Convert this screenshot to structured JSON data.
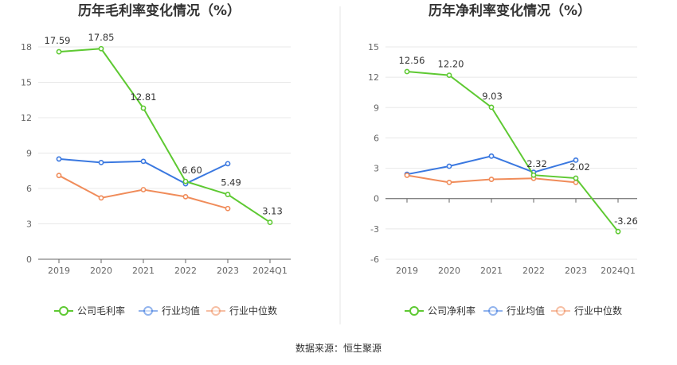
{
  "source": "数据来源：恒生聚源",
  "chart_data": [
    {
      "type": "line",
      "title": "历年毛利率变化情况（%）",
      "categories": [
        "2019",
        "2020",
        "2021",
        "2022",
        "2023",
        "2024Q1"
      ],
      "ylim": [
        0,
        18
      ],
      "yticks": [
        0,
        3,
        6,
        9,
        12,
        15,
        18
      ],
      "grid": true,
      "legend_position": "bottom",
      "series": [
        {
          "name": "公司毛利率",
          "color": "#5ec932",
          "values": [
            17.59,
            17.85,
            12.81,
            6.6,
            5.49,
            3.13
          ],
          "labels": [
            "17.59",
            "17.85",
            "12.81",
            "6.60",
            "5.49",
            "3.13"
          ]
        },
        {
          "name": "行业均值",
          "color": "#3a78e0",
          "values": [
            8.5,
            8.2,
            8.3,
            6.4,
            8.1,
            null
          ]
        },
        {
          "name": "行业中位数",
          "color": "#f08c5a",
          "values": [
            7.1,
            5.2,
            5.9,
            5.3,
            4.3,
            null
          ]
        }
      ]
    },
    {
      "type": "line",
      "title": "历年净利率变化情况（%）",
      "categories": [
        "2019",
        "2020",
        "2021",
        "2022",
        "2023",
        "2024Q1"
      ],
      "ylim": [
        -6,
        15
      ],
      "yticks": [
        -6,
        -3,
        0,
        3,
        6,
        9,
        12,
        15
      ],
      "grid": true,
      "legend_position": "bottom",
      "series": [
        {
          "name": "公司净利率",
          "color": "#5ec932",
          "values": [
            12.56,
            12.2,
            9.03,
            2.32,
            2.02,
            -3.26
          ],
          "labels": [
            "12.56",
            "12.20",
            "9.03",
            "2.32",
            "2.02",
            "-3.26"
          ]
        },
        {
          "name": "行业均值",
          "color": "#3a78e0",
          "values": [
            2.4,
            3.2,
            4.2,
            2.6,
            3.8,
            null
          ]
        },
        {
          "name": "行业中位数",
          "color": "#f08c5a",
          "values": [
            2.3,
            1.6,
            1.9,
            2.0,
            1.6,
            null
          ]
        }
      ]
    }
  ]
}
